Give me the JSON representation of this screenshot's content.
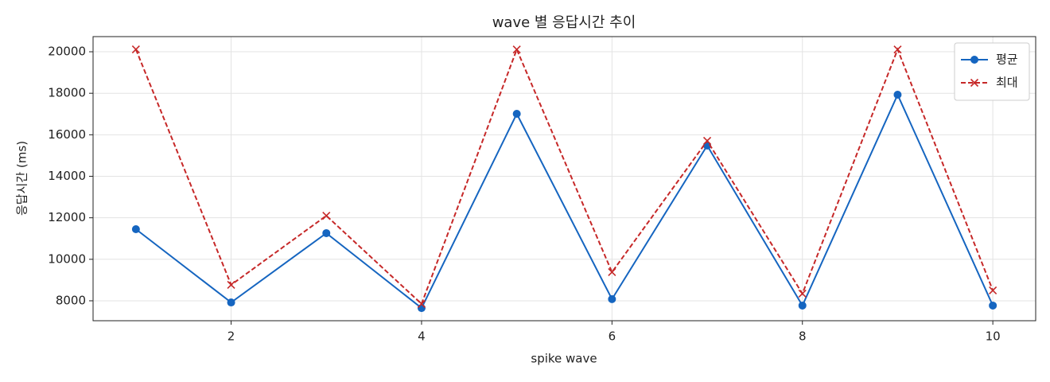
{
  "chart_data": {
    "type": "line",
    "title": "wave 별 응답시간 추이",
    "x_label": "spike wave",
    "y_label": "응답시간 (ms)",
    "x": [
      1,
      2,
      3,
      4,
      5,
      6,
      7,
      8,
      9,
      10
    ],
    "series": [
      {
        "name": "평균",
        "color": "#1565c0",
        "line_style": "solid",
        "marker": "circle",
        "values": [
          11450,
          7920,
          11260,
          7650,
          17010,
          8080,
          15480,
          7770,
          17930,
          7770
        ]
      },
      {
        "name": "최대",
        "color": "#c62828",
        "line_style": "dashed",
        "marker": "x",
        "values": [
          20115,
          8770,
          12100,
          7850,
          20110,
          9380,
          15710,
          8345,
          20110,
          8500
        ]
      }
    ],
    "xlim": [
      0.55,
      10.45
    ],
    "xticks": [
      2,
      4,
      6,
      8,
      10
    ],
    "ylim": [
      7040,
      20730
    ],
    "yticks": [
      8000,
      10000,
      12000,
      14000,
      16000,
      18000,
      20000
    ],
    "grid": true,
    "legend": "upper right"
  }
}
